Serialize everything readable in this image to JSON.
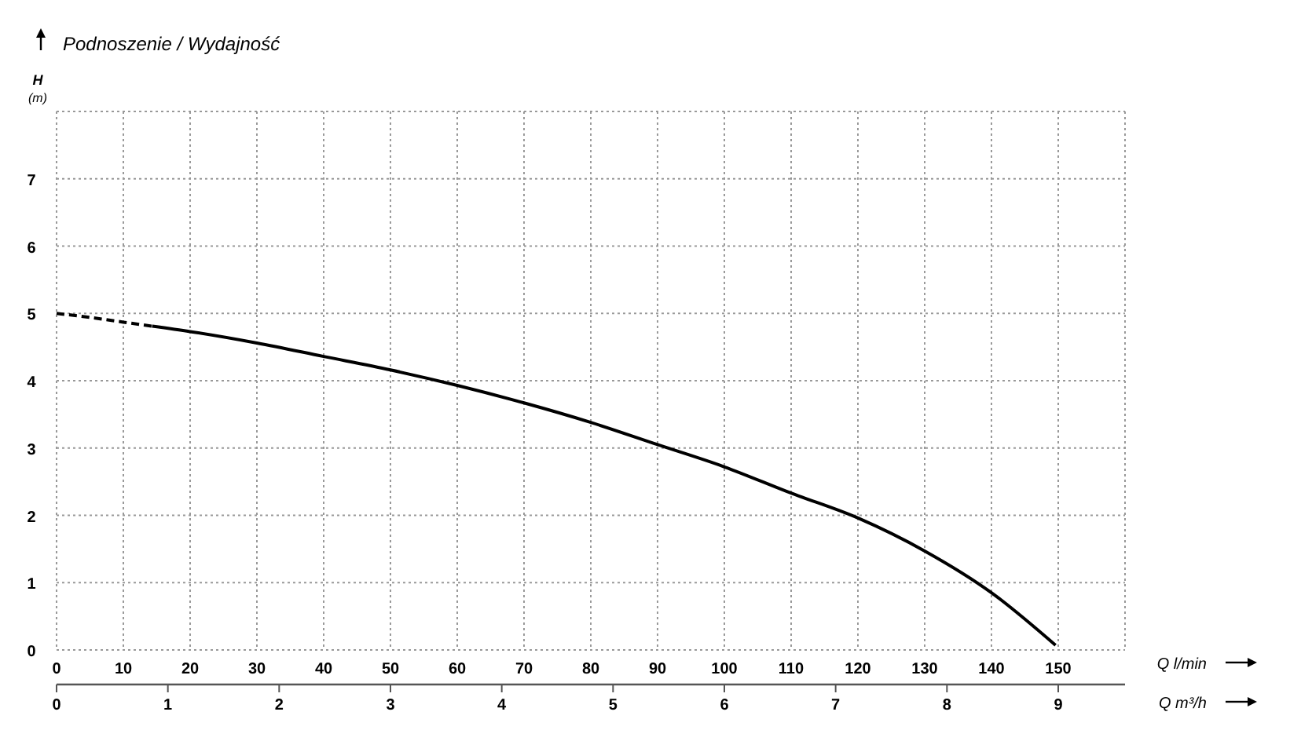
{
  "chart_data": {
    "type": "line",
    "title": "Podnoszenie / Wydajność",
    "ylabel": "H (m)",
    "xlabel": "Q l/min",
    "x2label": "Q m³/h",
    "xlim": [
      0,
      160
    ],
    "xticks": [
      0,
      10,
      20,
      30,
      40,
      50,
      60,
      70,
      80,
      90,
      100,
      110,
      120,
      130,
      140,
      150
    ],
    "x2lim": [
      0,
      9.6
    ],
    "x2ticks": [
      0,
      1,
      2,
      3,
      4,
      5,
      6,
      7,
      8,
      9
    ],
    "ylim": [
      0,
      8
    ],
    "yticks": [
      0,
      1,
      2,
      3,
      4,
      5,
      6,
      7,
      {
        "value": 8,
        "label": null
      }
    ],
    "grid": true,
    "marker": "none",
    "series": [
      {
        "color": "#000000",
        "line_style": "dashed",
        "x": [
          0,
          5,
          10,
          14.3
        ],
        "values": [
          5.0,
          4.94,
          4.87,
          4.81
        ]
      },
      {
        "color": "#000000",
        "line_style": "solid",
        "x": [
          14.3,
          20,
          30,
          40,
          50,
          60,
          70,
          80,
          90,
          100,
          110,
          120,
          130,
          140,
          149.6
        ],
        "values": [
          4.81,
          4.73,
          4.56,
          4.36,
          4.16,
          3.93,
          3.67,
          3.38,
          3.05,
          2.72,
          2.33,
          1.96,
          1.47,
          0.85,
          0.07
        ]
      }
    ]
  }
}
